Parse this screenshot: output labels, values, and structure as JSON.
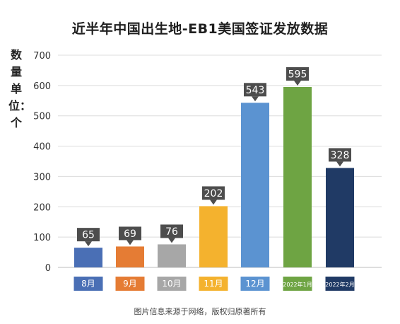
{
  "chart_data": {
    "type": "bar",
    "title": "近半年中国出生地-EB1美国签证发放数据",
    "ylabel": "数量 单位：个",
    "xlabel": "",
    "categories": [
      "8月",
      "9月",
      "10月",
      "11月",
      "12月",
      "2022年1月",
      "2022年2月"
    ],
    "values": [
      65,
      69,
      76,
      202,
      543,
      595,
      328
    ],
    "ylim": [
      0,
      700
    ],
    "yticks": [
      0,
      100,
      200,
      300,
      400,
      500,
      600,
      700
    ],
    "grid": true,
    "legend": "none",
    "colors": [
      "#4a6fb5",
      "#e57c34",
      "#a7a7a7",
      "#f4b22e",
      "#5b93d1",
      "#6ea443",
      "#203a65"
    ],
    "label_box_color": "#4d4d4d"
  },
  "footer": "图片信息来源于网络，版权归原著所有"
}
